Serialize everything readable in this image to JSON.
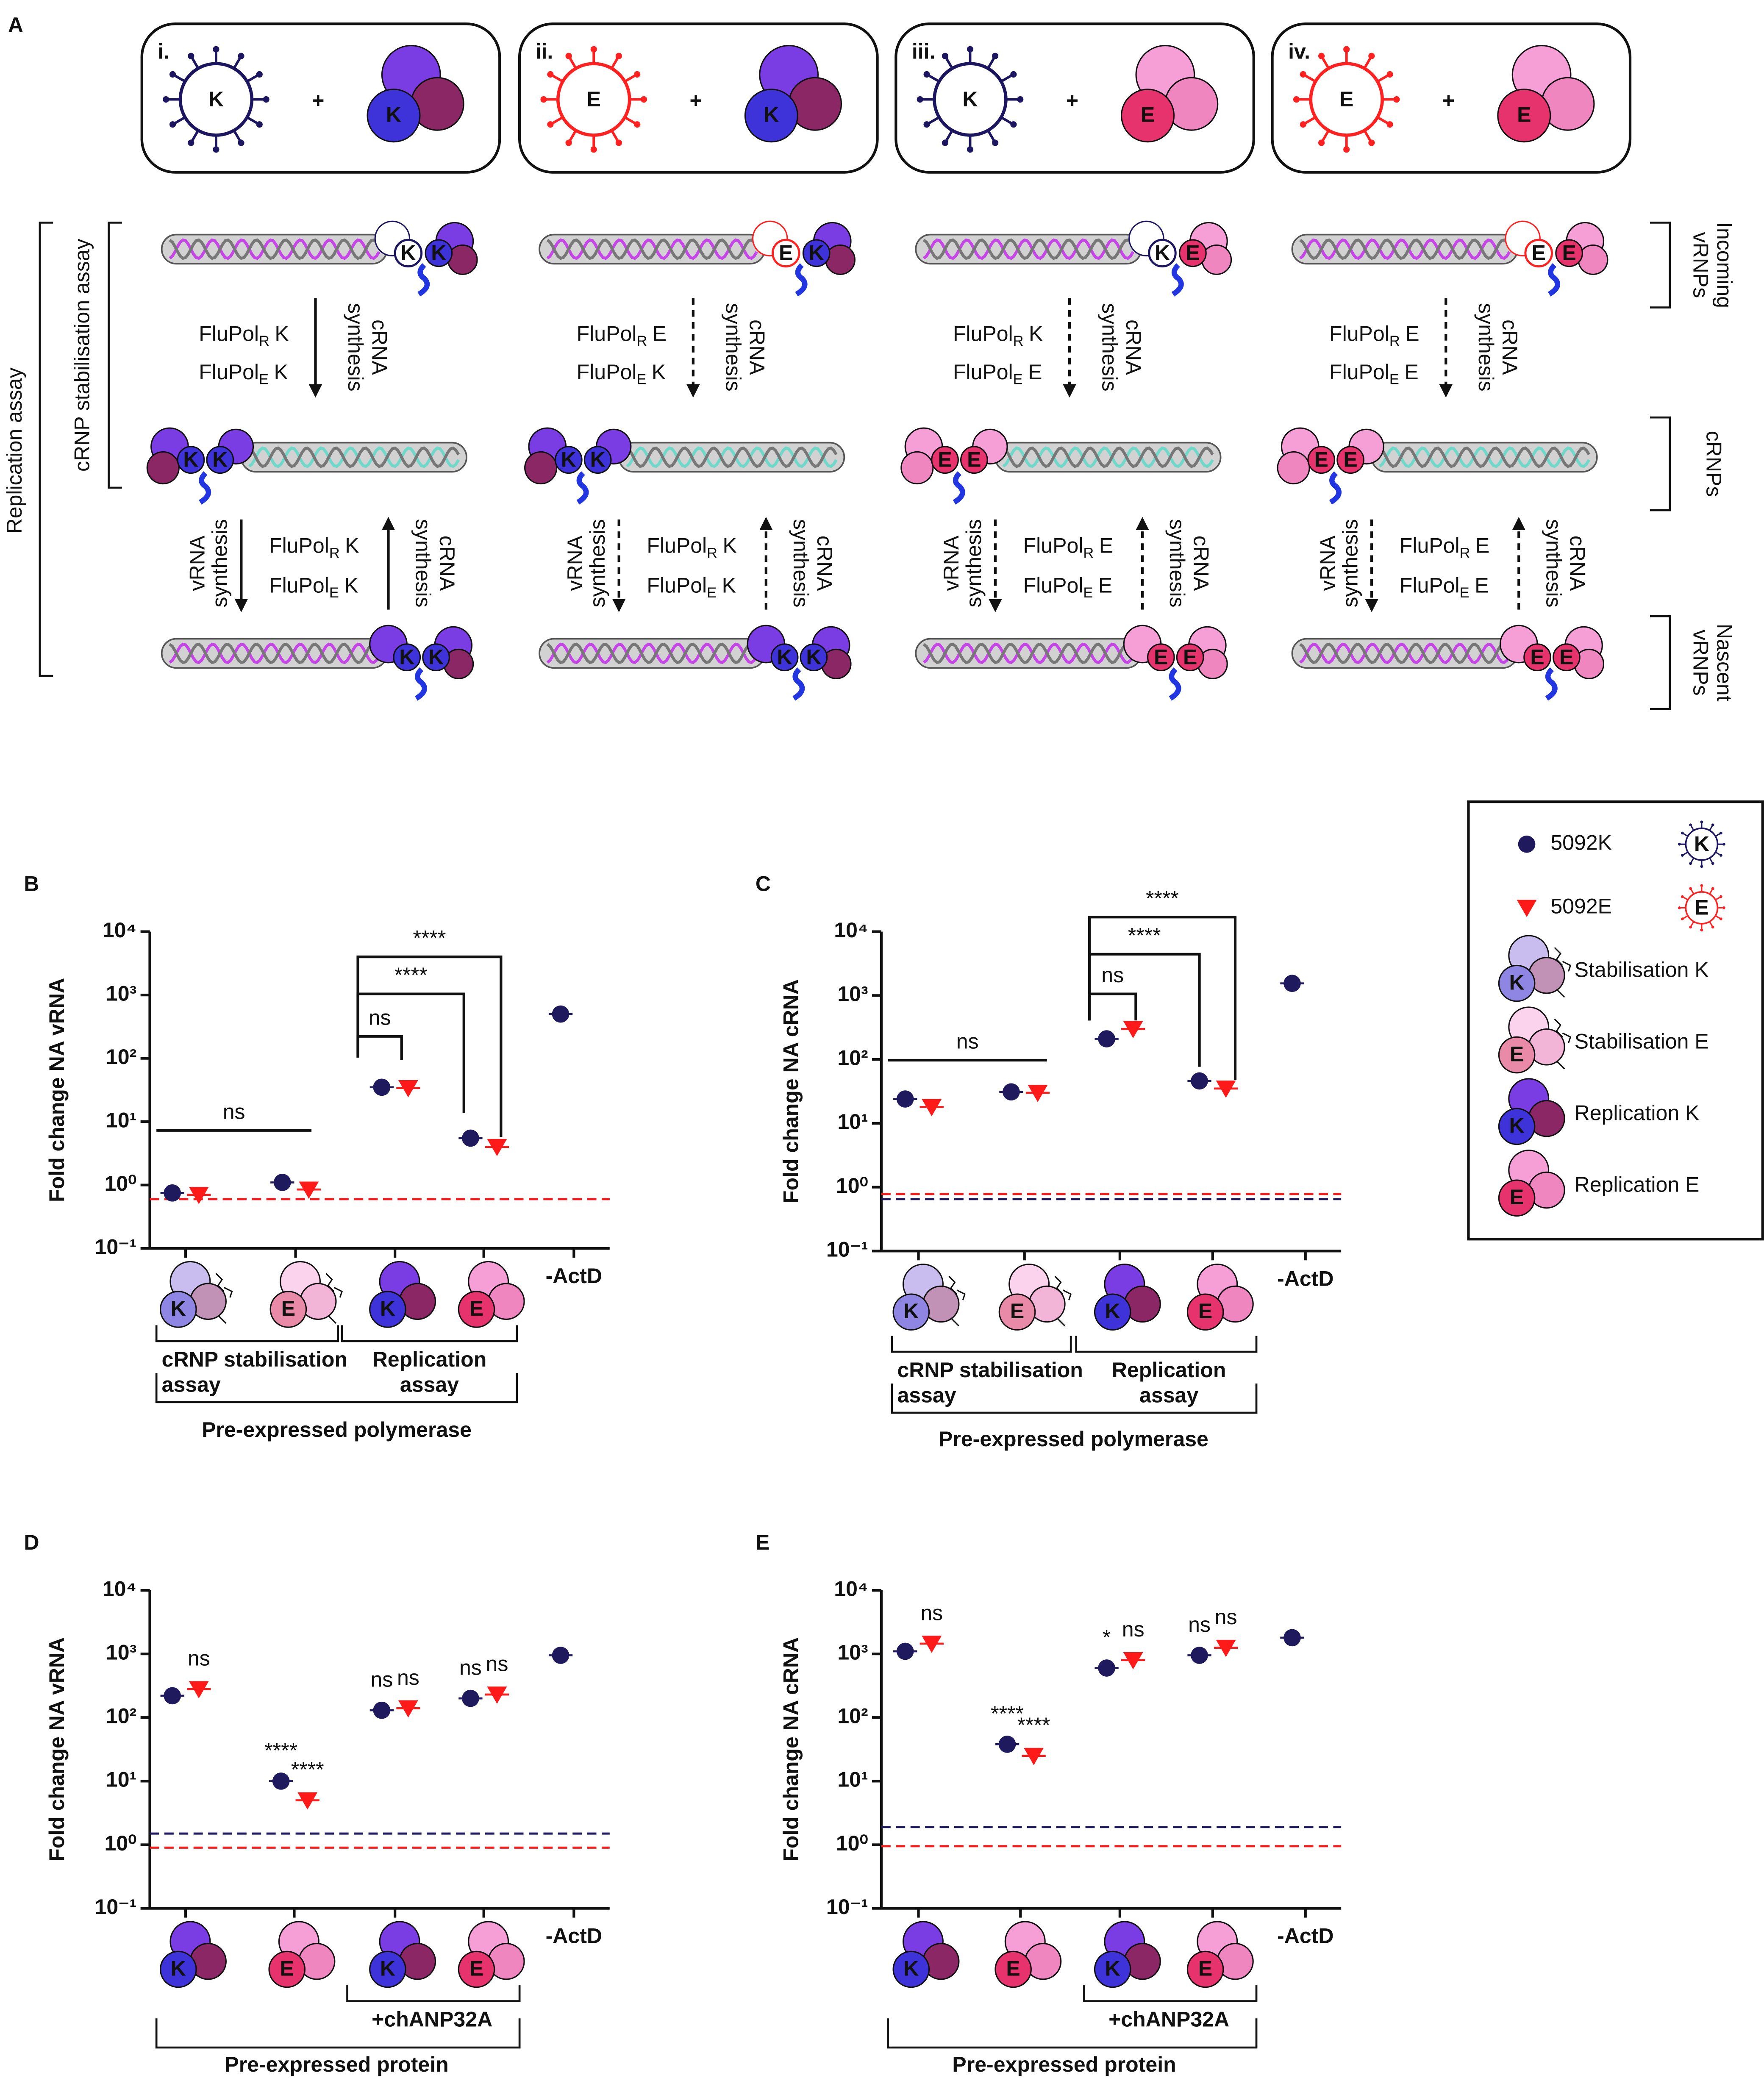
{
  "panel_a": {
    "label": "A",
    "plus": "+",
    "flupol": "FluPol",
    "subscripts": [
      "R",
      "E"
    ],
    "crna_synthesis": [
      "cRNA",
      "synthesis"
    ],
    "vrna_synthesis": [
      "vRNA",
      "synthesis"
    ],
    "replication_assay": "Replication assay",
    "crnp_assay": "cRNP stabilisation assay",
    "rows": [
      [
        "Incoming",
        "vRNPs"
      ],
      [
        "cRNPs"
      ],
      [
        "Nascent",
        "vRNPs"
      ]
    ],
    "columns": [
      {
        "numeral": "i.",
        "virus": "K",
        "polymerase": "K"
      },
      {
        "numeral": "ii.",
        "virus": "E",
        "polymerase": "K"
      },
      {
        "numeral": "iii.",
        "virus": "K",
        "polymerase": "E"
      },
      {
        "numeral": "iv.",
        "virus": "E",
        "polymerase": "E"
      }
    ]
  },
  "legend": {
    "items": [
      {
        "label": "Stabilisation K",
        "letter": "K"
      },
      {
        "label": "Stabilisation E",
        "letter": "E"
      },
      {
        "label": "Replication K",
        "letter": "K"
      },
      {
        "label": "Replication E",
        "letter": "E"
      }
    ]
  },
  "chart_data": [
    {
      "type": "dot",
      "panel": "B",
      "y_label": "Fold change NA vRNA",
      "log_scale": true,
      "ylim": [
        0.1,
        10000
      ],
      "yticks": [
        {
          "value": 0.1,
          "label": "10⁻¹"
        },
        {
          "value": 1,
          "label": "10⁰"
        },
        {
          "value": 10,
          "label": "10¹"
        },
        {
          "value": 100,
          "label": "10²"
        },
        {
          "value": 1000,
          "label": "10³"
        },
        {
          "value": 10000,
          "label": "10⁴"
        }
      ],
      "categories": [
        "K",
        "E",
        "K",
        "E",
        "-ActD"
      ],
      "series": [
        {
          "name": "5092K",
          "color": "#1f1a5e",
          "marker": "circle",
          "values": [
            0.75,
            1.1,
            35,
            5.5,
            500
          ],
          "baseline": 0.6
        },
        {
          "name": "5092E",
          "color": "#ff1a1a",
          "marker": "triangle",
          "values": [
            0.7,
            0.85,
            34,
            4,
            null
          ],
          "baseline": 0.6
        }
      ],
      "brackets": [
        {
          "label": "ns"
        },
        {
          "label": "ns"
        },
        {
          "label": "****"
        },
        {
          "label": "****"
        }
      ],
      "groups": [
        {
          "lines": [
            "cRNP stabilisation",
            "assay"
          ]
        },
        {
          "lines": [
            "Replication",
            "assay"
          ]
        }
      ],
      "footer": "Pre-expressed polymerase"
    },
    {
      "type": "dot",
      "panel": "C",
      "y_label": "Fold change NA cRNA",
      "log_scale": true,
      "ylim": [
        0.1,
        10000
      ],
      "yticks": [
        {
          "value": 0.1,
          "label": "10⁻¹"
        },
        {
          "value": 1,
          "label": "10⁰"
        },
        {
          "value": 10,
          "label": "10¹"
        },
        {
          "value": 100,
          "label": "10²"
        },
        {
          "value": 1000,
          "label": "10³"
        },
        {
          "value": 10000,
          "label": "10⁴"
        }
      ],
      "categories": [
        "K",
        "E",
        "K",
        "E",
        "-ActD"
      ],
      "series": [
        {
          "name": "5092K",
          "color": "#1f1a5e",
          "marker": "circle",
          "values": [
            24,
            31,
            210,
            46,
            1550
          ],
          "baseline": 0.65
        },
        {
          "name": "5092E",
          "color": "#ff1a1a",
          "marker": "triangle",
          "values": [
            18,
            30,
            300,
            35,
            null
          ],
          "baseline": 0.78
        }
      ],
      "brackets": [
        {
          "label": "ns"
        },
        {
          "label": "ns"
        },
        {
          "label": "****"
        },
        {
          "label": "****"
        }
      ],
      "groups": [
        {
          "lines": [
            "cRNP stabilisation",
            "assay"
          ]
        },
        {
          "lines": [
            "Replication",
            "assay"
          ]
        }
      ],
      "footer": "Pre-expressed polymerase"
    },
    {
      "type": "dot",
      "panel": "D",
      "y_label": "Fold change NA vRNA",
      "log_scale": true,
      "ylim": [
        0.1,
        10000
      ],
      "yticks": [
        {
          "value": 0.1,
          "label": "10⁻¹"
        },
        {
          "value": 1,
          "label": "10⁰"
        },
        {
          "value": 10,
          "label": "10¹"
        },
        {
          "value": 100,
          "label": "10²"
        },
        {
          "value": 1000,
          "label": "10³"
        },
        {
          "value": 10000,
          "label": "10⁴"
        }
      ],
      "categories": [
        "K",
        "E",
        "K",
        "E",
        "-ActD"
      ],
      "series": [
        {
          "name": "5092K",
          "color": "#1f1a5e",
          "marker": "circle",
          "values": [
            220,
            10,
            130,
            200,
            950
          ],
          "baseline": 1.5,
          "significance": [
            null,
            "****",
            "ns",
            "ns",
            null
          ]
        },
        {
          "name": "5092E",
          "color": "#ff1a1a",
          "marker": "triangle",
          "values": [
            280,
            5,
            140,
            230,
            null
          ],
          "baseline": 0.9,
          "significance": [
            "ns",
            "****",
            "ns",
            "ns",
            null
          ]
        }
      ],
      "groups": [
        {
          "lines": [
            "+chANP32A"
          ]
        }
      ],
      "footer": "Pre-expressed protein"
    },
    {
      "type": "dot",
      "panel": "E",
      "y_label": "Fold change NA cRNA",
      "log_scale": true,
      "ylim": [
        0.1,
        10000
      ],
      "yticks": [
        {
          "value": 0.1,
          "label": "10⁻¹"
        },
        {
          "value": 1,
          "label": "10⁰"
        },
        {
          "value": 10,
          "label": "10¹"
        },
        {
          "value": 100,
          "label": "10²"
        },
        {
          "value": 1000,
          "label": "10³"
        },
        {
          "value": 10000,
          "label": "10⁴"
        }
      ],
      "categories": [
        "K",
        "E",
        "K",
        "E",
        "-ActD"
      ],
      "series": [
        {
          "name": "5092K",
          "color": "#1f1a5e",
          "marker": "circle",
          "values": [
            1100,
            38,
            600,
            950,
            1800
          ],
          "baseline": 1.9,
          "significance": [
            null,
            "****",
            "*",
            "ns",
            null
          ]
        },
        {
          "name": "5092E",
          "color": "#ff1a1a",
          "marker": "triangle",
          "values": [
            1450,
            25,
            800,
            1250,
            null
          ],
          "baseline": 0.95,
          "significance": [
            "ns",
            "****",
            "ns",
            "ns",
            null
          ]
        }
      ],
      "groups": [
        {
          "lines": [
            "+chANP32A"
          ]
        }
      ],
      "footer": "Pre-expressed protein"
    }
  ]
}
